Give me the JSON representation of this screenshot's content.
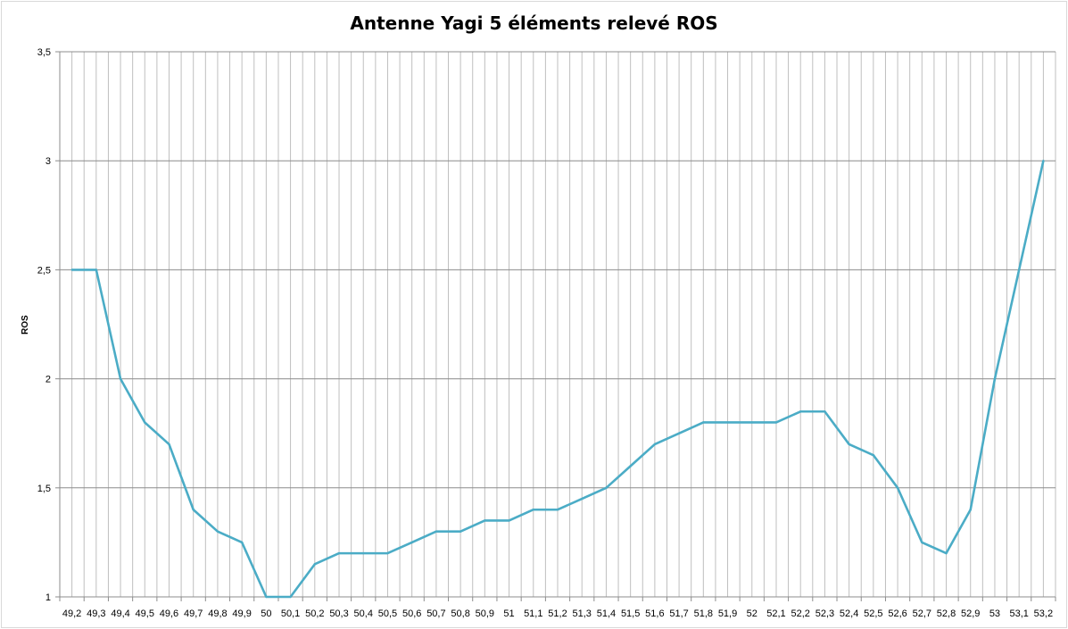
{
  "chart_data": {
    "type": "line",
    "title": "Antenne Yagi 5 éléments relevé ROS",
    "xlabel": "",
    "ylabel": "ROS",
    "ylim": [
      1,
      3.5
    ],
    "yticks": [
      "1",
      "1,5",
      "2",
      "2,5",
      "3",
      "3,5"
    ],
    "yticks_values": [
      1,
      1.5,
      2,
      2.5,
      3,
      3.5
    ],
    "grid": true,
    "legend": "none",
    "line_color": "#4bacc6",
    "categories": [
      "49,2",
      "49,3",
      "49,4",
      "49,5",
      "49,6",
      "49,7",
      "49,8",
      "49,9",
      "50",
      "50,1",
      "50,2",
      "50,3",
      "50,4",
      "50,5",
      "50,6",
      "50,7",
      "50,8",
      "50,9",
      "51",
      "51,1",
      "51,2",
      "51,3",
      "51,4",
      "51,5",
      "51,6",
      "51,7",
      "51,8",
      "51,9",
      "52",
      "52,1",
      "52,2",
      "52,3",
      "52,4",
      "52,5",
      "52,6",
      "52,7",
      "52,8",
      "52,9",
      "53",
      "53,1",
      "53,2"
    ],
    "series": [
      {
        "values": [
          2.5,
          2.5,
          2.0,
          1.8,
          1.7,
          1.4,
          1.3,
          1.25,
          1.0,
          1.0,
          1.15,
          1.2,
          1.2,
          1.2,
          1.25,
          1.3,
          1.3,
          1.35,
          1.35,
          1.4,
          1.4,
          1.45,
          1.5,
          1.6,
          1.7,
          1.75,
          1.8,
          1.8,
          1.8,
          1.8,
          1.85,
          1.85,
          1.7,
          1.65,
          1.5,
          1.25,
          1.2,
          1.4,
          2.0,
          2.5,
          3.0
        ]
      }
    ]
  }
}
